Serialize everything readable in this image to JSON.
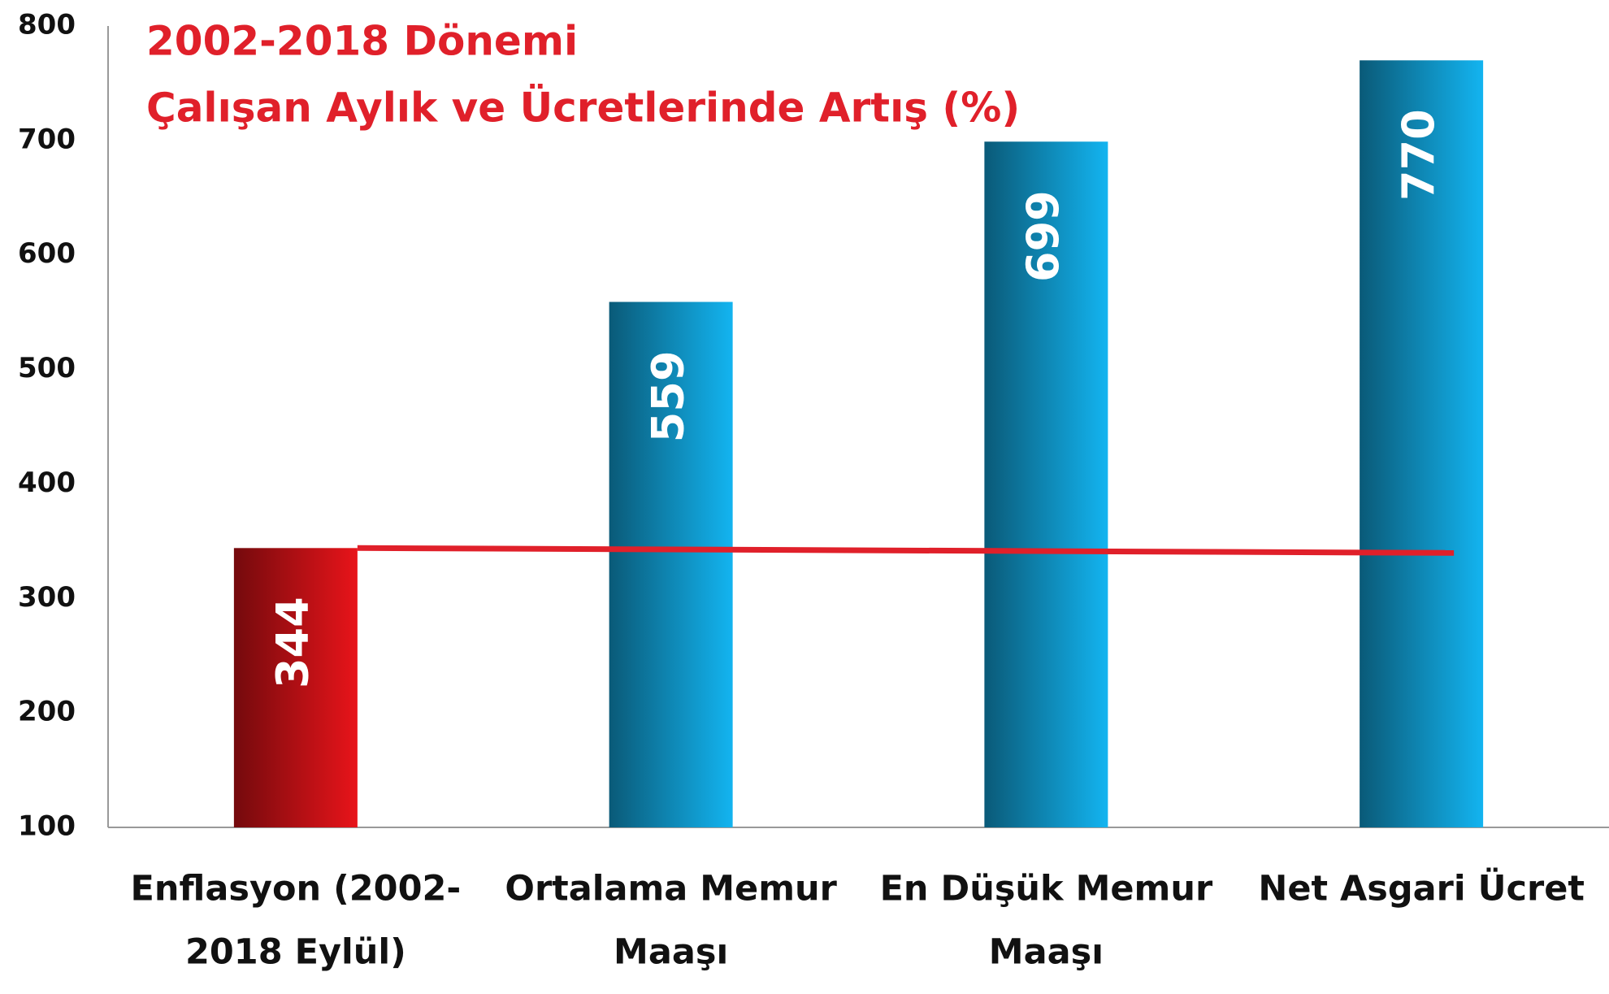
{
  "chart_data": {
    "type": "bar",
    "title": "2002-2018 Dönemi",
    "subtitle": "Çalışan Aylık ve Ücretlerinde Artış (%)",
    "categories": [
      [
        "Enflasyon (2002-",
        "2018 Eylül)"
      ],
      [
        "Ortalama Memur",
        "Maaşı"
      ],
      [
        "En Düşük Memur",
        "Maaşı"
      ],
      [
        "Net Asgari Ücret"
      ]
    ],
    "values": [
      344,
      559,
      699,
      770
    ],
    "colors": [
      "#e8141a",
      "#13b4f0",
      "#13b4f0",
      "#13b4f0"
    ],
    "reference_color": "#e0202a",
    "title_color": "#e0202a",
    "ylim": [
      100,
      800
    ],
    "yticks": [
      100,
      200,
      300,
      400,
      500,
      600,
      700,
      800
    ],
    "grid": false
  }
}
